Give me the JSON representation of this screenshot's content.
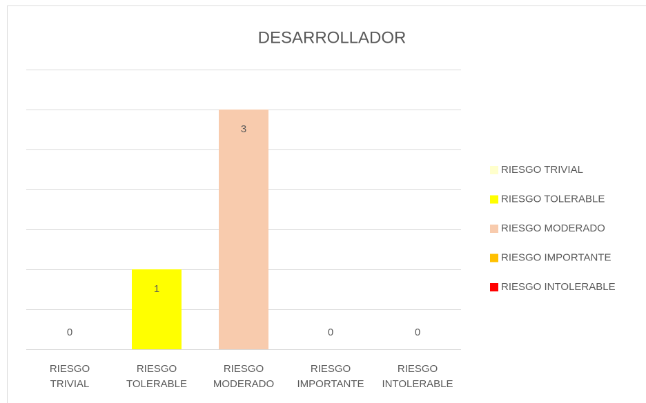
{
  "chart_data": {
    "type": "bar",
    "title": "DESARROLLADOR",
    "categories": [
      "RIESGO TRIVIAL",
      "RIESGO TOLERABLE",
      "RIESGO MODERADO",
      "RIESGO IMPORTANTE",
      "RIESGO INTOLERABLE"
    ],
    "values": [
      0,
      1,
      3,
      0,
      0
    ],
    "colors": [
      "#FFFFCC",
      "#FFFF00",
      "#F8CBAD",
      "#FFC000",
      "#FF0000"
    ],
    "ylim": [
      0,
      3.5
    ],
    "yticks": [
      0,
      0.5,
      1,
      1.5,
      2,
      2.5,
      3,
      3.5
    ],
    "grid": true,
    "legend": "right"
  }
}
